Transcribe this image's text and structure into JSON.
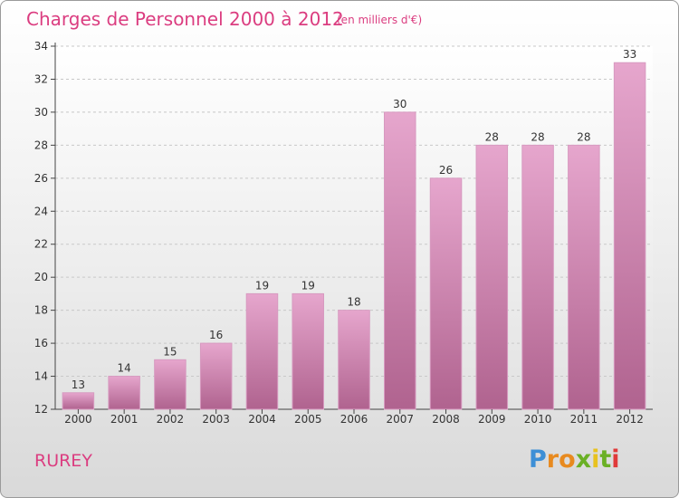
{
  "chart_data": {
    "type": "bar",
    "title": "Charges de Personnel 2000 à 2012",
    "subtitle": "(en milliers d'€)",
    "categories": [
      "2000",
      "2001",
      "2002",
      "2003",
      "2004",
      "2005",
      "2006",
      "2007",
      "2008",
      "2009",
      "2010",
      "2011",
      "2012"
    ],
    "values": [
      13,
      14,
      15,
      16,
      19,
      19,
      18,
      30,
      26,
      28,
      28,
      28,
      33
    ],
    "yticks": [
      12,
      14,
      16,
      18,
      20,
      22,
      24,
      26,
      28,
      30,
      32,
      34
    ],
    "ylim": [
      12,
      34
    ],
    "grid": true,
    "bar_color": "#c9709e"
  },
  "place_name": "RUREY",
  "logo": {
    "letters": [
      "P",
      "r",
      "o",
      "x",
      "i",
      "t",
      "i"
    ],
    "colors": [
      "#3d8fd6",
      "#e88a1f",
      "#e88a1f",
      "#6ab025",
      "#e8c21f",
      "#6ab025",
      "#e03a3a"
    ]
  }
}
